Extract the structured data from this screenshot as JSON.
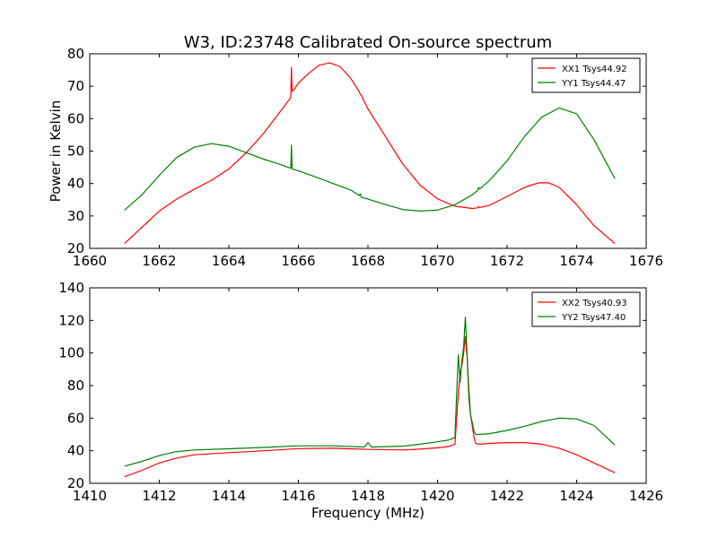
{
  "title": "W3, ID:23748 Calibrated On-source spectrum",
  "chart_data": [
    {
      "type": "line",
      "title": "W3, ID:23748 Calibrated On-source spectrum",
      "xlabel": "",
      "ylabel": "Power in Kelvin",
      "xlim": [
        1660,
        1676
      ],
      "ylim": [
        20,
        80
      ],
      "xticks": [
        1660,
        1662,
        1664,
        1666,
        1668,
        1670,
        1672,
        1674,
        1676
      ],
      "yticks": [
        20,
        30,
        40,
        50,
        60,
        70,
        80
      ],
      "legend_position": "top-right",
      "series": [
        {
          "name": "XX1 Tsys44.92",
          "color": "#ff0000",
          "x": [
            1661.0,
            1661.5,
            1662.0,
            1662.5,
            1663.0,
            1663.5,
            1664.0,
            1664.5,
            1665.0,
            1665.5,
            1665.78,
            1665.8,
            1665.82,
            1665.86,
            1666.0,
            1666.3,
            1666.6,
            1666.9,
            1667.2,
            1667.5,
            1667.75,
            1667.78,
            1667.81,
            1668.0,
            1668.5,
            1669.0,
            1669.5,
            1670.0,
            1670.5,
            1671.0,
            1671.15,
            1671.18,
            1671.21,
            1671.5,
            1672.0,
            1672.5,
            1672.9,
            1673.2,
            1673.5,
            1674.0,
            1674.5,
            1675.1
          ],
          "y": [
            21.5,
            26.5,
            31.5,
            35.2,
            38.2,
            41.0,
            44.5,
            49.5,
            55.5,
            62.5,
            66.5,
            75.8,
            68.5,
            68.7,
            71.0,
            74.0,
            76.5,
            77.2,
            76.0,
            72.5,
            68.3,
            67.5,
            67.2,
            63.0,
            54.5,
            46.0,
            39.5,
            35.3,
            33.0,
            32.3,
            32.5,
            32.9,
            32.6,
            33.3,
            36.0,
            38.8,
            40.2,
            40.2,
            38.8,
            33.5,
            27.0,
            21.5
          ]
        },
        {
          "name": "YY1 Tsys44.47",
          "color": "#008000",
          "x": [
            1661.0,
            1661.5,
            1662.0,
            1662.5,
            1663.0,
            1663.5,
            1664.0,
            1664.5,
            1665.0,
            1665.5,
            1665.78,
            1665.8,
            1665.82,
            1666.0,
            1666.5,
            1667.0,
            1667.5,
            1667.75,
            1667.78,
            1667.81,
            1668.0,
            1668.5,
            1669.0,
            1669.5,
            1670.0,
            1670.5,
            1671.0,
            1671.15,
            1671.18,
            1671.21,
            1671.5,
            1672.0,
            1672.5,
            1673.0,
            1673.5,
            1674.0,
            1674.5,
            1675.1
          ],
          "y": [
            31.8,
            36.5,
            42.5,
            48.0,
            51.2,
            52.3,
            51.5,
            49.5,
            47.5,
            45.8,
            44.7,
            51.8,
            44.5,
            43.9,
            42.0,
            40.0,
            38.0,
            36.3,
            36.8,
            35.8,
            35.2,
            33.5,
            32.0,
            31.5,
            31.8,
            33.5,
            36.5,
            37.8,
            38.8,
            38.3,
            41.0,
            47.0,
            54.5,
            60.5,
            63.3,
            61.5,
            53.5,
            41.5
          ]
        }
      ]
    },
    {
      "type": "line",
      "title": "",
      "xlabel": "Frequency (MHz)",
      "ylabel": "",
      "xlim": [
        1410,
        1426
      ],
      "ylim": [
        20,
        140
      ],
      "xticks": [
        1410,
        1412,
        1414,
        1416,
        1418,
        1420,
        1422,
        1424,
        1426
      ],
      "yticks": [
        20,
        40,
        60,
        80,
        100,
        120,
        140
      ],
      "legend_position": "top-right",
      "series": [
        {
          "name": "XX2 Tsys40.93",
          "color": "#ff0000",
          "x": [
            1411.0,
            1411.5,
            1412.0,
            1412.5,
            1413.0,
            1414.0,
            1415.0,
            1416.0,
            1417.0,
            1418.0,
            1419.0,
            1419.5,
            1420.0,
            1420.3,
            1420.5,
            1420.55,
            1420.6,
            1420.65,
            1420.7,
            1420.75,
            1420.8,
            1420.85,
            1420.9,
            1420.95,
            1421.0,
            1421.05,
            1421.1,
            1421.2,
            1421.5,
            1422.0,
            1422.5,
            1423.0,
            1423.5,
            1424.0,
            1424.5,
            1425.1
          ],
          "y": [
            24.0,
            28.0,
            32.5,
            35.5,
            37.5,
            38.8,
            40.0,
            41.3,
            41.5,
            40.8,
            40.5,
            41.0,
            41.8,
            42.5,
            44.0,
            60.0,
            75.0,
            88.0,
            92.0,
            100.0,
            110.0,
            98.0,
            78.0,
            62.0,
            55.0,
            48.0,
            44.5,
            44.0,
            44.5,
            45.0,
            45.0,
            44.0,
            41.5,
            37.5,
            32.5,
            26.5
          ]
        },
        {
          "name": "YY2 Tsys47.40",
          "color": "#008000",
          "x": [
            1411.0,
            1411.5,
            1412.0,
            1412.5,
            1413.0,
            1414.0,
            1415.0,
            1416.0,
            1417.0,
            1417.9,
            1418.0,
            1418.1,
            1419.0,
            1419.5,
            1420.0,
            1420.3,
            1420.5,
            1420.55,
            1420.6,
            1420.65,
            1420.7,
            1420.75,
            1420.8,
            1420.85,
            1420.9,
            1420.95,
            1421.0,
            1421.05,
            1421.1,
            1421.2,
            1421.5,
            1422.0,
            1422.5,
            1423.0,
            1423.5,
            1424.0,
            1424.5,
            1425.1
          ],
          "y": [
            30.5,
            33.5,
            37.0,
            39.5,
            40.5,
            41.2,
            42.0,
            43.0,
            43.0,
            42.3,
            45.0,
            42.3,
            42.8,
            44.0,
            45.5,
            46.5,
            48.0,
            75.0,
            99.0,
            82.0,
            95.0,
            104.0,
            122.0,
            100.0,
            72.0,
            62.0,
            57.0,
            52.0,
            50.0,
            50.0,
            50.5,
            52.5,
            55.0,
            58.0,
            60.0,
            59.5,
            55.5,
            43.5
          ]
        }
      ]
    }
  ]
}
